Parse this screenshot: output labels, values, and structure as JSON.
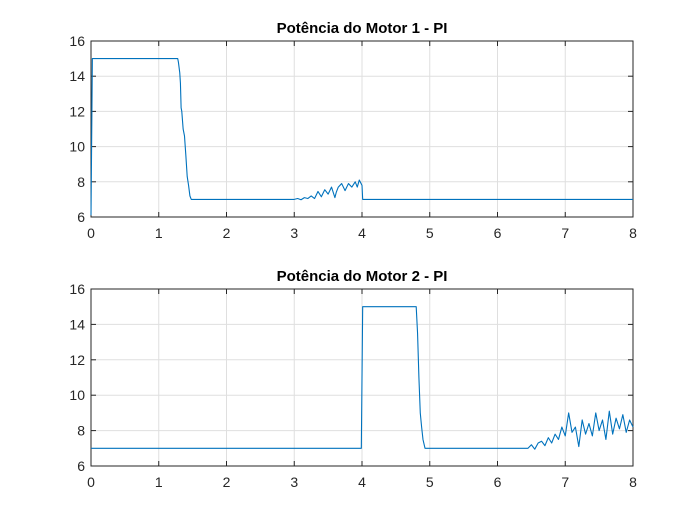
{
  "figure": {
    "background": "#ffffff",
    "axes_color": "#262626",
    "grid_color": "#dfdfdf",
    "line_color": "#0072bd"
  },
  "chart_data": [
    {
      "type": "line",
      "title": "Potência do Motor 1 - PI",
      "xlabel": "",
      "ylabel": "",
      "xlim": [
        0,
        8
      ],
      "ylim": [
        6,
        16
      ],
      "xticks": [
        "0",
        "1",
        "2",
        "3",
        "4",
        "5",
        "6",
        "7",
        "8"
      ],
      "yticks": [
        "6",
        "8",
        "10",
        "12",
        "14",
        "16"
      ],
      "grid": true,
      "legend": "none",
      "series": [
        {
          "color": "#0072bd",
          "x": [
            0,
            0.02,
            0.03,
            1.28,
            1.29,
            1.31,
            1.32,
            1.33,
            1.34,
            1.36,
            1.38,
            1.4,
            1.42,
            1.44,
            1.46,
            1.48,
            1.5,
            1.55,
            2.0,
            2.95,
            3.0,
            3.05,
            3.1,
            3.15,
            3.2,
            3.25,
            3.3,
            3.35,
            3.4,
            3.45,
            3.5,
            3.55,
            3.6,
            3.62,
            3.65,
            3.7,
            3.75,
            3.8,
            3.85,
            3.9,
            3.93,
            3.96,
            4.0,
            4.01,
            4.5,
            5.0,
            6.0,
            7.0,
            8.0
          ],
          "y": [
            6.1,
            15.0,
            15.0,
            15.0,
            14.8,
            14.2,
            13.6,
            12.2,
            12.0,
            11.0,
            10.6,
            9.5,
            8.3,
            7.8,
            7.2,
            7.0,
            7.0,
            7.0,
            7.0,
            7.0,
            7.0,
            7.05,
            6.98,
            7.1,
            7.05,
            7.2,
            7.05,
            7.45,
            7.15,
            7.55,
            7.3,
            7.7,
            7.1,
            7.4,
            7.7,
            7.9,
            7.5,
            7.9,
            7.7,
            8.0,
            7.7,
            8.1,
            7.8,
            7.0,
            7.0,
            7.0,
            7.0,
            7.0,
            7.0
          ]
        }
      ]
    },
    {
      "type": "line",
      "title": "Potência do Motor 2 - PI",
      "xlabel": "",
      "ylabel": "",
      "xlim": [
        0,
        8
      ],
      "ylim": [
        6,
        16
      ],
      "xticks": [
        "0",
        "1",
        "2",
        "3",
        "4",
        "5",
        "6",
        "7",
        "8"
      ],
      "yticks": [
        "6",
        "8",
        "10",
        "12",
        "14",
        "16"
      ],
      "grid": true,
      "legend": "none",
      "series": [
        {
          "color": "#0072bd",
          "x": [
            0,
            1,
            2,
            3,
            3.99,
            4.01,
            4.5,
            4.8,
            4.82,
            4.84,
            4.86,
            4.88,
            4.9,
            4.93,
            5.0,
            5.5,
            6.0,
            6.45,
            6.5,
            6.55,
            6.6,
            6.65,
            6.7,
            6.75,
            6.8,
            6.85,
            6.9,
            6.95,
            7.0,
            7.05,
            7.1,
            7.15,
            7.2,
            7.25,
            7.3,
            7.35,
            7.4,
            7.45,
            7.5,
            7.55,
            7.6,
            7.65,
            7.7,
            7.75,
            7.8,
            7.85,
            7.9,
            7.95,
            8.0
          ],
          "y": [
            7.0,
            7.0,
            7.0,
            7.0,
            7.0,
            15.0,
            15.0,
            15.0,
            13.5,
            11.0,
            9.0,
            8.2,
            7.5,
            7.0,
            7.0,
            7.0,
            7.0,
            7.0,
            7.2,
            6.95,
            7.3,
            7.4,
            7.15,
            7.6,
            7.3,
            7.8,
            7.5,
            8.2,
            7.7,
            9.0,
            7.9,
            8.2,
            7.1,
            8.6,
            7.8,
            8.4,
            7.7,
            9.0,
            8.0,
            8.6,
            7.5,
            9.1,
            7.8,
            8.7,
            8.1,
            8.9,
            7.9,
            8.6,
            8.2
          ]
        }
      ]
    }
  ]
}
